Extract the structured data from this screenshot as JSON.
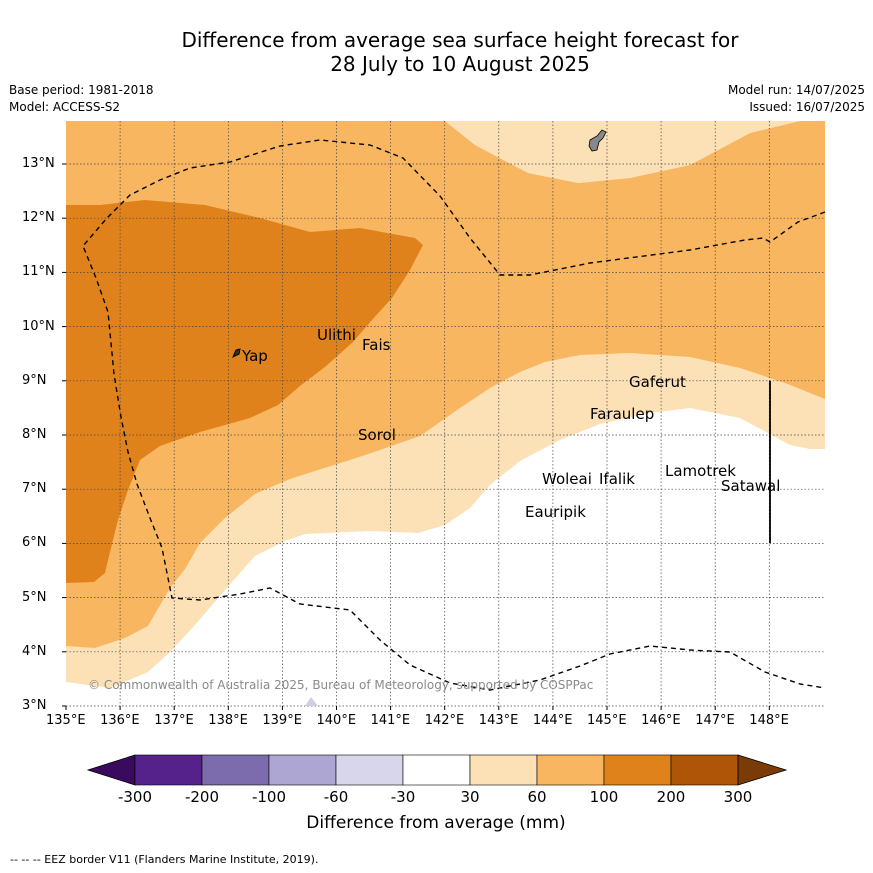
{
  "title_line1": "Difference from average sea surface height forecast for",
  "title_line2": "28 July to 10 August 2025",
  "base_period": "Base period: 1981-2018",
  "model": "Model: ACCESS-S2",
  "model_run": "Model run: 14/07/2025",
  "issued": "Issued: 16/07/2025",
  "x_ticks": [
    "135°E",
    "136°E",
    "137°E",
    "138°E",
    "139°E",
    "140°E",
    "141°E",
    "142°E",
    "143°E",
    "144°E",
    "145°E",
    "146°E",
    "147°E",
    "148°E"
  ],
  "y_ticks": [
    "13°N",
    "12°N",
    "11°N",
    "10°N",
    "9°N",
    "8°N",
    "7°N",
    "6°N",
    "5°N",
    "4°N",
    "3°N"
  ],
  "places": [
    "Yap",
    "Ulithi",
    "Fais",
    "Sorol",
    "Gaferut",
    "Faraulep",
    "Woleai",
    "Ifalik",
    "Eauripik",
    "Lamotrek",
    "Satawal"
  ],
  "copyright": "© Commonwealth of Australia 2025, Bureau of Meteorology, supported by COSPPac",
  "colorbar": {
    "ticks": [
      "-300",
      "-200",
      "-100",
      "-60",
      "-30",
      "30",
      "60",
      "100",
      "200",
      "300"
    ],
    "colors": [
      "#3a0a5e",
      "#54228a",
      "#7d6cad",
      "#aea6d2",
      "#d8d6ea",
      "#ffffff",
      "#fde1b6",
      "#f9b661",
      "#e0821c",
      "#ae5507",
      "#7a3b06"
    ],
    "title": "Difference from average (mm)"
  },
  "legend_eez": "--  --  -- EEZ border V11 (Flanders Marine Institute, 2019).",
  "chart_data": {
    "type": "heatmap",
    "x_range_lon": [
      135,
      149.1
    ],
    "y_range_lat": [
      2.95,
      13.8
    ],
    "levels_mm": [
      -300,
      -200,
      -100,
      -60,
      -30,
      30,
      60,
      100,
      200,
      300
    ],
    "gridlines": true
  }
}
